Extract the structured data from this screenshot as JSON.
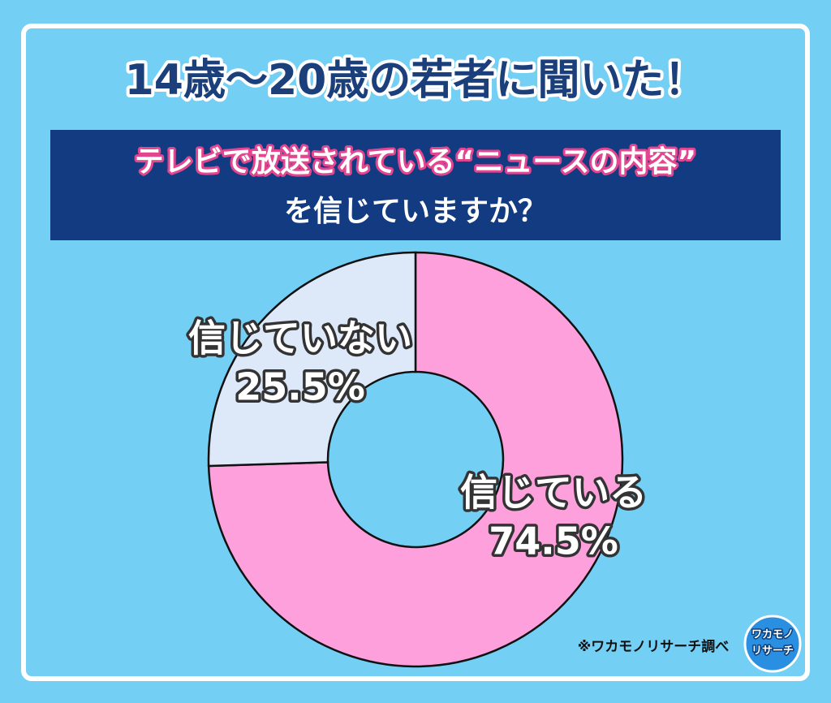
{
  "title": "14歳～20歳の若者に聞いた！",
  "subtitle": [
    "テレビで放送されている“ニュースの内容”",
    "を信じていますか？"
  ],
  "chart_data": {
    "type": "pie",
    "donut": true,
    "categories": [
      "信じている",
      "信じていない"
    ],
    "values": [
      74.5,
      25.5
    ],
    "value_labels": [
      "74.5%",
      "25.5%"
    ],
    "colors": [
      "#fda0dc",
      "#dde9f8"
    ]
  },
  "source": "※ワカモノリサーチ調べ",
  "logo": [
    "ワカモノ",
    "リサーチ"
  ]
}
